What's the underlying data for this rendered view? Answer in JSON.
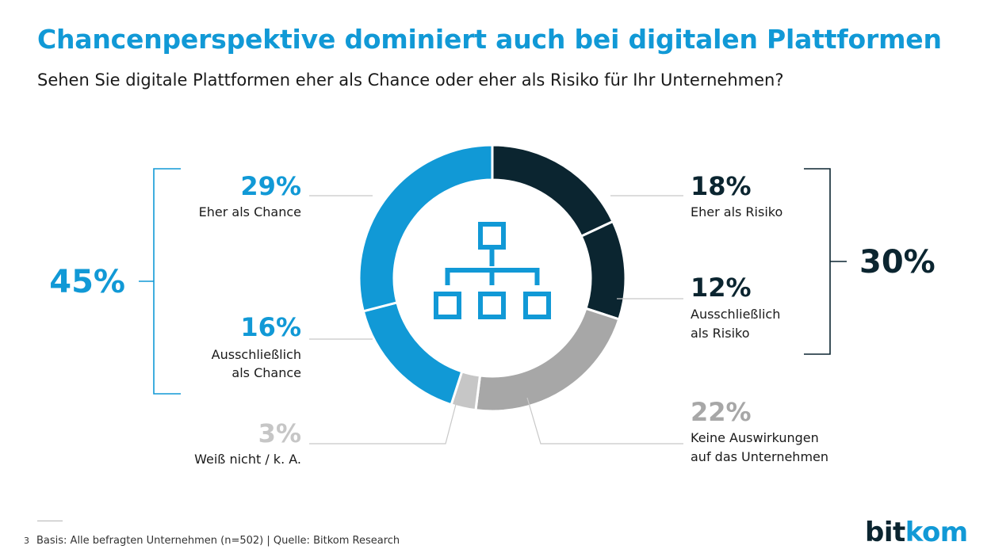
{
  "header": {
    "title": "Chancenperspektive dominiert auch bei digitalen Plattformen",
    "subtitle": "Sehen Sie digitale Plattformen eher als Chance oder eher als Risiko für Ihr Unternehmen?"
  },
  "chart_data": {
    "type": "pie",
    "title": "Chancenperspektive dominiert auch bei digitalen Plattformen",
    "subtitle": "Sehen Sie digitale Plattformen eher als Chance oder eher als Risiko für Ihr Unternehmen?",
    "donut": true,
    "center_icon": "hierarchy-icon",
    "slices": [
      {
        "key": "eher_risiko",
        "label": "Eher als Risiko",
        "value": 18,
        "value_label": "18%",
        "color": "#0b2530"
      },
      {
        "key": "ausschl_risiko",
        "label": "Ausschließlich als Risiko",
        "value": 12,
        "value_label": "12%",
        "color": "#0b2530"
      },
      {
        "key": "keine",
        "label": "Keine Auswirkungen auf das Unternehmen",
        "value": 22,
        "value_label": "22%",
        "color": "#a7a7a7"
      },
      {
        "key": "weiss_nicht",
        "label": "Weiß nicht / k. A.",
        "value": 3,
        "value_label": "3%",
        "color": "#c6c6c6"
      },
      {
        "key": "ausschl_chance",
        "label": "Ausschließlich als Chance",
        "value": 16,
        "value_label": "16%",
        "color": "#1199d6"
      },
      {
        "key": "eher_chance",
        "label": "Eher als Chance",
        "value": 29,
        "value_label": "29%",
        "color": "#1199d6"
      }
    ],
    "groups": [
      {
        "label": "45%",
        "value": 45,
        "members": [
          "eher_chance",
          "ausschl_chance"
        ],
        "color": "#1199d6"
      },
      {
        "label": "30%",
        "value": 30,
        "members": [
          "eher_risiko",
          "ausschl_risiko"
        ],
        "color": "#0b2530"
      }
    ]
  },
  "labels": {
    "eher_chance": {
      "pct": "29%",
      "line1": "Eher als Chance",
      "line2": ""
    },
    "ausschl_chance": {
      "pct": "16%",
      "line1": "Ausschließlich",
      "line2": "als Chance"
    },
    "weiss_nicht": {
      "pct": "3%",
      "line1": "Weiß nicht / k. A.",
      "line2": ""
    },
    "eher_risiko": {
      "pct": "18%",
      "line1": "Eher als Risiko",
      "line2": ""
    },
    "ausschl_risiko": {
      "pct": "12%",
      "line1": "Ausschließlich",
      "line2": "als Risiko"
    },
    "keine": {
      "pct": "22%",
      "line1": "Keine Auswirkungen",
      "line2": "auf das Unternehmen"
    },
    "group_chance": "45%",
    "group_risiko": "30%"
  },
  "footer": {
    "page_number": "3",
    "source": "Basis: Alle befragten Unternehmen (n=502) | Quelle: Bitkom Research",
    "logo_left": "bit",
    "logo_right": "kom"
  },
  "colors": {
    "blue": "#1199d6",
    "dark": "#0b2530",
    "gray": "#a7a7a7",
    "light_gray": "#c6c6c6",
    "leader": "#c8c8c8"
  }
}
